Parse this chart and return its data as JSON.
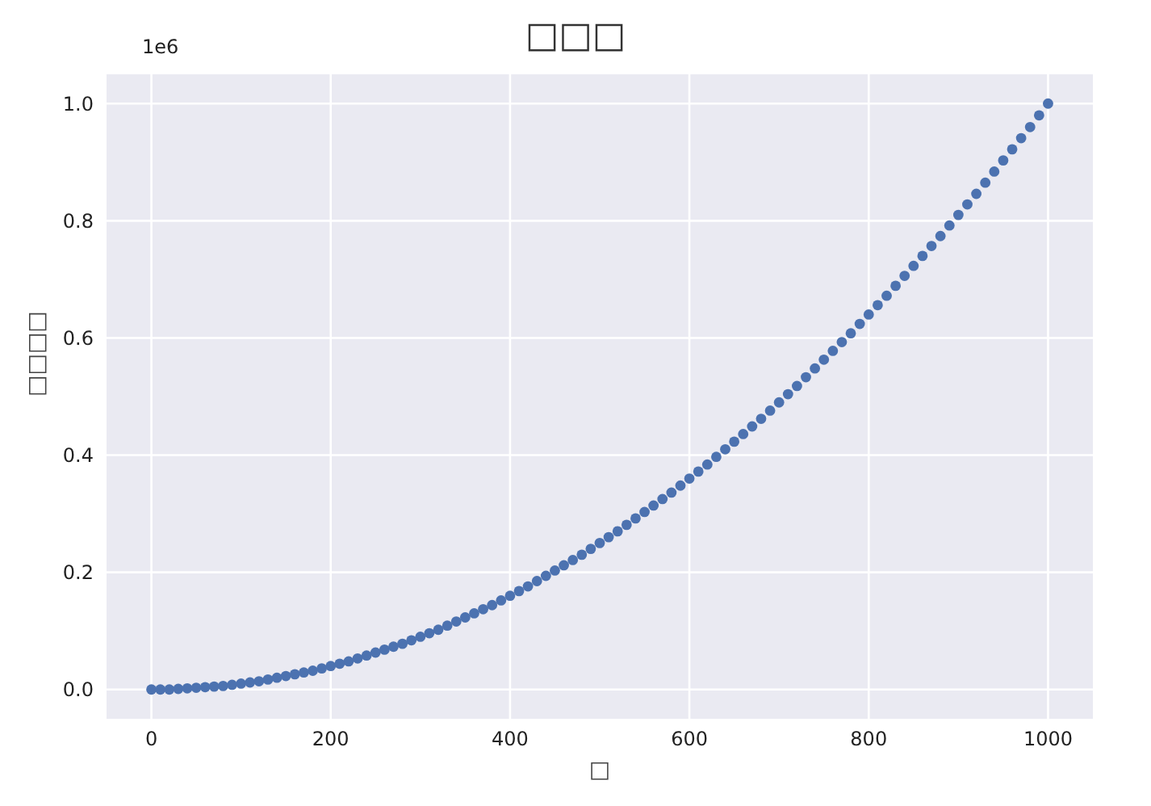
{
  "chart_data": {
    "type": "scatter",
    "title": "□□□",
    "xlabel": "□",
    "ylabel": "□□□□",
    "annotations": [
      "1e6"
    ],
    "x": [
      0,
      10,
      20,
      30,
      40,
      50,
      60,
      70,
      80,
      90,
      100,
      110,
      120,
      130,
      140,
      150,
      160,
      170,
      180,
      190,
      200,
      210,
      220,
      230,
      240,
      250,
      260,
      270,
      280,
      290,
      300,
      310,
      320,
      330,
      340,
      350,
      360,
      370,
      380,
      390,
      400,
      410,
      420,
      430,
      440,
      450,
      460,
      470,
      480,
      490,
      500,
      510,
      520,
      530,
      540,
      550,
      560,
      570,
      580,
      590,
      600,
      610,
      620,
      630,
      640,
      650,
      660,
      670,
      680,
      690,
      700,
      710,
      720,
      730,
      740,
      750,
      760,
      770,
      780,
      790,
      800,
      810,
      820,
      830,
      840,
      850,
      860,
      870,
      880,
      890,
      900,
      910,
      920,
      930,
      940,
      950,
      960,
      970,
      980,
      990,
      1000
    ],
    "series": [
      {
        "color": "#4c72b0",
        "values": [
          0,
          0,
          0,
          0.001,
          0.002,
          0.003,
          0.004,
          0.005,
          0.006,
          0.008,
          0.01,
          0.012,
          0.014,
          0.017,
          0.02,
          0.023,
          0.026,
          0.029,
          0.032,
          0.036,
          0.04,
          0.044,
          0.048,
          0.053,
          0.058,
          0.063,
          0.068,
          0.073,
          0.078,
          0.084,
          0.09,
          0.096,
          0.102,
          0.109,
          0.116,
          0.123,
          0.13,
          0.137,
          0.144,
          0.152,
          0.16,
          0.168,
          0.176,
          0.185,
          0.194,
          0.203,
          0.212,
          0.221,
          0.23,
          0.24,
          0.25,
          0.26,
          0.27,
          0.281,
          0.292,
          0.303,
          0.314,
          0.325,
          0.336,
          0.348,
          0.36,
          0.372,
          0.384,
          0.397,
          0.41,
          0.423,
          0.436,
          0.449,
          0.462,
          0.476,
          0.49,
          0.504,
          0.518,
          0.533,
          0.548,
          0.563,
          0.578,
          0.593,
          0.608,
          0.624,
          0.64,
          0.656,
          0.672,
          0.689,
          0.706,
          0.723,
          0.74,
          0.757,
          0.774,
          0.792,
          0.81,
          0.828,
          0.846,
          0.865,
          0.884,
          0.903,
          0.922,
          0.941,
          0.96,
          0.98,
          1
        ]
      }
    ],
    "xlim": [
      -50,
      1050
    ],
    "xticks": [
      0,
      200,
      400,
      600,
      800,
      1000
    ],
    "ylim": [
      -0.05,
      1.05
    ],
    "yticks": [
      {
        "value": 0,
        "label": "0.0"
      },
      0.2,
      0.4,
      0.6,
      0.8,
      {
        "value": 1,
        "label": "1.0"
      }
    ],
    "grid": true,
    "marker": "circle",
    "legend": false
  }
}
